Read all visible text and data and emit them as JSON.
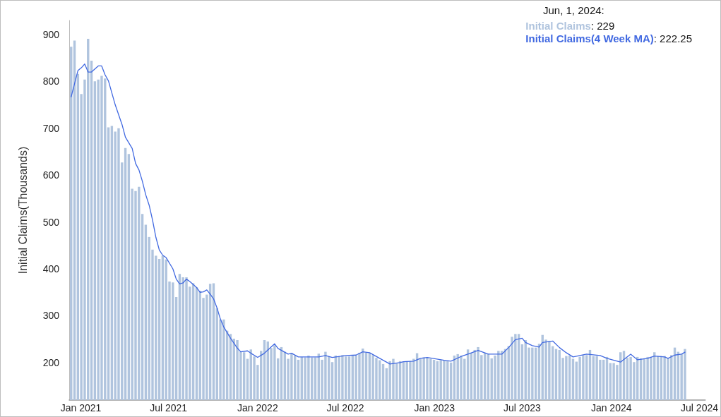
{
  "chart_data": {
    "type": "bar",
    "ylabel": "Initial Claims(Thousands)",
    "annotations": [
      "Jun, 1, 2024:",
      ": 229",
      ": 222.25"
    ],
    "legend": "top right",
    "grid": false,
    "xlim": [
      "2020-12-08",
      "2024-07-13"
    ],
    "xticks": [
      {
        "value": "2021-01-01",
        "label": "Jan 2021"
      },
      {
        "value": "2021-07-01",
        "label": "Jul 2021"
      },
      {
        "value": "2022-01-01",
        "label": "Jan 2022"
      },
      {
        "value": "2022-07-01",
        "label": "Jul 2022"
      },
      {
        "value": "2023-01-01",
        "label": "Jan 2023"
      },
      {
        "value": "2023-07-01",
        "label": "Jul 2023"
      },
      {
        "value": "2024-01-01",
        "label": "Jan 2024"
      },
      {
        "value": "2024-07-01",
        "label": "Jul 2024"
      }
    ],
    "ylim": [
      120,
      930
    ],
    "yticks": [
      200,
      300,
      400,
      500,
      600,
      700,
      800,
      900
    ],
    "x": [
      "2020-12-12",
      "2020-12-19",
      "2020-12-26",
      "2021-01-02",
      "2021-01-09",
      "2021-01-16",
      "2021-01-23",
      "2021-01-30",
      "2021-02-06",
      "2021-02-13",
      "2021-02-20",
      "2021-02-27",
      "2021-03-06",
      "2021-03-13",
      "2021-03-20",
      "2021-03-27",
      "2021-04-03",
      "2021-04-10",
      "2021-04-17",
      "2021-04-24",
      "2021-05-01",
      "2021-05-08",
      "2021-05-15",
      "2021-05-22",
      "2021-05-29",
      "2021-06-05",
      "2021-06-12",
      "2021-06-19",
      "2021-06-26",
      "2021-07-03",
      "2021-07-10",
      "2021-07-17",
      "2021-07-24",
      "2021-07-31",
      "2021-08-07",
      "2021-08-14",
      "2021-08-21",
      "2021-08-28",
      "2021-09-04",
      "2021-09-11",
      "2021-09-18",
      "2021-09-25",
      "2021-10-02",
      "2021-10-09",
      "2021-10-16",
      "2021-10-23",
      "2021-10-30",
      "2021-11-06",
      "2021-11-13",
      "2021-11-20",
      "2021-11-27",
      "2021-12-04",
      "2021-12-11",
      "2021-12-18",
      "2021-12-25",
      "2022-01-01",
      "2022-01-08",
      "2022-01-15",
      "2022-01-22",
      "2022-01-29",
      "2022-02-05",
      "2022-02-12",
      "2022-02-19",
      "2022-02-26",
      "2022-03-05",
      "2022-03-12",
      "2022-03-19",
      "2022-03-26",
      "2022-04-02",
      "2022-04-09",
      "2022-04-16",
      "2022-04-23",
      "2022-04-30",
      "2022-05-07",
      "2022-05-14",
      "2022-05-21",
      "2022-05-28",
      "2022-06-04",
      "2022-06-11",
      "2022-06-18",
      "2022-06-25",
      "2022-07-02",
      "2022-07-09",
      "2022-07-16",
      "2022-07-23",
      "2022-07-30",
      "2022-08-06",
      "2022-08-13",
      "2022-08-20",
      "2022-08-27",
      "2022-09-03",
      "2022-09-10",
      "2022-09-17",
      "2022-09-24",
      "2022-10-01",
      "2022-10-08",
      "2022-10-15",
      "2022-10-22",
      "2022-10-29",
      "2022-11-05",
      "2022-11-12",
      "2022-11-19",
      "2022-11-26",
      "2022-12-03",
      "2022-12-10",
      "2022-12-17",
      "2022-12-24",
      "2022-12-31",
      "2023-01-07",
      "2023-01-14",
      "2023-01-21",
      "2023-01-28",
      "2023-02-04",
      "2023-02-11",
      "2023-02-18",
      "2023-02-25",
      "2023-03-04",
      "2023-03-11",
      "2023-03-18",
      "2023-03-25",
      "2023-04-01",
      "2023-04-08",
      "2023-04-15",
      "2023-04-22",
      "2023-04-29",
      "2023-05-06",
      "2023-05-13",
      "2023-05-20",
      "2023-05-27",
      "2023-06-03",
      "2023-06-10",
      "2023-06-17",
      "2023-06-24",
      "2023-07-01",
      "2023-07-08",
      "2023-07-15",
      "2023-07-22",
      "2023-07-29",
      "2023-08-05",
      "2023-08-12",
      "2023-08-19",
      "2023-08-26",
      "2023-09-02",
      "2023-09-09",
      "2023-09-16",
      "2023-09-23",
      "2023-09-30",
      "2023-10-07",
      "2023-10-14",
      "2023-10-21",
      "2023-10-28",
      "2023-11-04",
      "2023-11-11",
      "2023-11-18",
      "2023-11-25",
      "2023-12-02",
      "2023-12-09",
      "2023-12-16",
      "2023-12-23",
      "2023-12-30",
      "2024-01-06",
      "2024-01-13",
      "2024-01-20",
      "2024-01-27",
      "2024-02-03",
      "2024-02-10",
      "2024-02-17",
      "2024-02-24",
      "2024-03-02",
      "2024-03-09",
      "2024-03-16",
      "2024-03-23",
      "2024-03-30",
      "2024-04-06",
      "2024-04-13",
      "2024-04-20",
      "2024-04-27",
      "2024-05-04",
      "2024-05-11",
      "2024-05-18",
      "2024-05-25",
      "2024-06-01"
    ],
    "series": [
      {
        "name": "Initial Claims",
        "color": "#b0c4de",
        "values": [
          874,
          887,
          816,
          773,
          804,
          891,
          844,
          800,
          804,
          812,
          806,
          702,
          705,
          693,
          700,
          627,
          658,
          645,
          571,
          566,
          575,
          517,
          494,
          468,
          441,
          428,
          421,
          428,
          420,
          373,
          371,
          340,
          389,
          382,
          382,
          362,
          369,
          361,
          353,
          338,
          345,
          368,
          369,
          316,
          292,
          292,
          268,
          261,
          251,
          248,
          223,
          222,
          208,
          228,
          213,
          195,
          225,
          248,
          245,
          231,
          237,
          209,
          233,
          223,
          208,
          220,
          215,
          206,
          212,
          211,
          215,
          211,
          211,
          219,
          206,
          223,
          213,
          201,
          215,
          213,
          216,
          213,
          213,
          216,
          216,
          221,
          230,
          221,
          221,
          216,
          210,
          205,
          197,
          188,
          203,
          208,
          198,
          203,
          202,
          203,
          203,
          208,
          220,
          208,
          211,
          211,
          208,
          206,
          203,
          205,
          205,
          203,
          200,
          215,
          218,
          215,
          208,
          228,
          221,
          227,
          233,
          216,
          221,
          219,
          209,
          215,
          225,
          225,
          229,
          235,
          255,
          261,
          261,
          239,
          248,
          232,
          232,
          232,
          240,
          259,
          249,
          246,
          235,
          229,
          227,
          210,
          214,
          215,
          208,
          202,
          212,
          216,
          216,
          227,
          214,
          214,
          206,
          206,
          212,
          199,
          199,
          195,
          222,
          225,
          210,
          212,
          201,
          212,
          209,
          209,
          212,
          212,
          222,
          214,
          214,
          214,
          209,
          216,
          232,
          223,
          218,
          229
        ]
      },
      {
        "name": "Initial Claims(4 Week MA)",
        "type": "line",
        "color": "#4169e1",
        "marker": "none",
        "line_style": "solid",
        "x": [
          "2020-12-12",
          "2020-12-26",
          "2021-01-02",
          "2021-01-09",
          "2021-01-16",
          "2021-01-23",
          "2021-02-06",
          "2021-02-13",
          "2021-02-20",
          "2021-02-27",
          "2021-03-13",
          "2021-03-27",
          "2021-04-03",
          "2021-04-17",
          "2021-04-24",
          "2021-05-01",
          "2021-05-08",
          "2021-05-15",
          "2021-05-22",
          "2021-05-29",
          "2021-06-05",
          "2021-06-12",
          "2021-06-19",
          "2021-06-26",
          "2021-07-10",
          "2021-07-17",
          "2021-07-24",
          "2021-07-31",
          "2021-08-07",
          "2021-08-14",
          "2021-08-28",
          "2021-09-04",
          "2021-09-11",
          "2021-09-18",
          "2021-09-25",
          "2021-10-02",
          "2021-10-09",
          "2021-10-16",
          "2021-10-23",
          "2021-11-06",
          "2021-11-20",
          "2021-11-27",
          "2021-12-11",
          "2021-12-18",
          "2022-01-01",
          "2022-01-15",
          "2022-02-05",
          "2022-02-12",
          "2022-03-05",
          "2022-03-12",
          "2022-03-26",
          "2022-05-07",
          "2022-05-21",
          "2022-06-04",
          "2022-07-02",
          "2022-07-23",
          "2022-08-06",
          "2022-08-20",
          "2022-09-10",
          "2022-10-01",
          "2022-10-22",
          "2022-10-29",
          "2022-11-19",
          "2022-12-03",
          "2022-12-17",
          "2023-01-21",
          "2023-02-04",
          "2023-02-25",
          "2023-03-11",
          "2023-04-01",
          "2023-04-22",
          "2023-04-29",
          "2023-05-20",
          "2023-06-03",
          "2023-06-17",
          "2023-07-01",
          "2023-07-08",
          "2023-07-22",
          "2023-08-05",
          "2023-08-12",
          "2023-09-02",
          "2023-09-16",
          "2023-09-30",
          "2023-10-14",
          "2023-11-11",
          "2023-12-09",
          "2023-12-23",
          "2024-01-20",
          "2024-02-10",
          "2024-02-24",
          "2024-03-16",
          "2024-03-30",
          "2024-04-20",
          "2024-04-27",
          "2024-05-11",
          "2024-05-25",
          "2024-06-01"
        ],
        "values": [
          767,
          823,
          829,
          837,
          820,
          820,
          833,
          833,
          814,
          801,
          750,
          708,
          681,
          657,
          625,
          611,
          587,
          558,
          536,
          504,
          467,
          440,
          429,
          424,
          400,
          378,
          368,
          370,
          378,
          373,
          360,
          350,
          351,
          355,
          346,
          336,
          317,
          293,
          276,
          252,
          231,
          223,
          225,
          220,
          211,
          220,
          240,
          230,
          218,
          220,
          212,
          212,
          215,
          211,
          215,
          216,
          223,
          221,
          209,
          197,
          200,
          202,
          203,
          209,
          211,
          205,
          203,
          213,
          218,
          226,
          218,
          218,
          218,
          232,
          249,
          252,
          243,
          236,
          233,
          243,
          246,
          232,
          221,
          212,
          218,
          215,
          209,
          201,
          218,
          206,
          209,
          214,
          212,
          209,
          216,
          218,
          222.25
        ]
      }
    ]
  }
}
